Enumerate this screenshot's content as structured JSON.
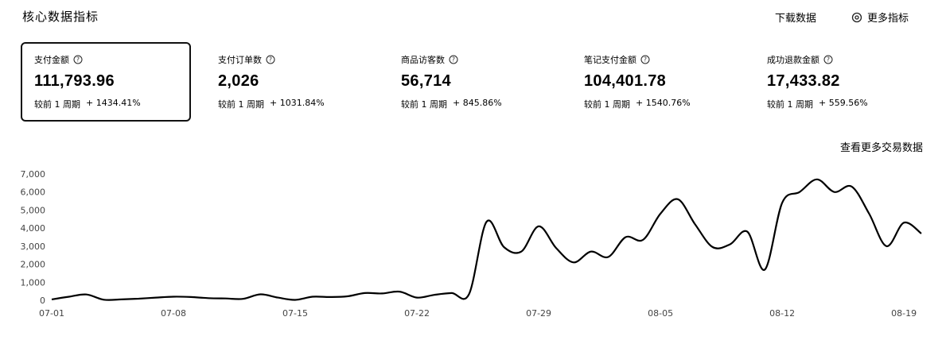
{
  "header": {
    "title": "核心数据指标",
    "download_label": "下载数据",
    "more_metrics_label": "更多指标"
  },
  "metrics": [
    {
      "label": "支付金额",
      "value": "111,793.96",
      "compare_label": "较前 1 周期",
      "change": "+ 1434.41%",
      "selected": true
    },
    {
      "label": "支付订单数",
      "value": "2,026",
      "compare_label": "较前 1 周期",
      "change": "+ 1031.84%",
      "selected": false
    },
    {
      "label": "商品访客数",
      "value": "56,714",
      "compare_label": "较前 1 周期",
      "change": "+ 845.86%",
      "selected": false
    },
    {
      "label": "笔记支付金额",
      "value": "104,401.78",
      "compare_label": "较前 1 周期",
      "change": "+ 1540.76%",
      "selected": false
    },
    {
      "label": "成功退款金额",
      "value": "17,433.82",
      "compare_label": "较前 1 周期",
      "change": "+ 559.56%",
      "selected": false
    }
  ],
  "more_trade_label": "查看更多交易数据",
  "chart_data": {
    "type": "line",
    "x": [
      "07-01",
      "07-02",
      "07-03",
      "07-04",
      "07-05",
      "07-06",
      "07-07",
      "07-08",
      "07-09",
      "07-10",
      "07-11",
      "07-12",
      "07-13",
      "07-14",
      "07-15",
      "07-16",
      "07-17",
      "07-18",
      "07-19",
      "07-20",
      "07-21",
      "07-22",
      "07-23",
      "07-24",
      "07-25",
      "07-26",
      "07-27",
      "07-28",
      "07-29",
      "07-30",
      "07-31",
      "08-01",
      "08-02",
      "08-03",
      "08-04",
      "08-05",
      "08-06",
      "08-07",
      "08-08",
      "08-09",
      "08-10",
      "08-11",
      "08-12",
      "08-13",
      "08-14",
      "08-15",
      "08-16",
      "08-17",
      "08-18",
      "08-19",
      "08-20"
    ],
    "values": [
      50,
      200,
      320,
      30,
      50,
      90,
      150,
      200,
      180,
      120,
      100,
      80,
      330,
      150,
      20,
      200,
      180,
      220,
      400,
      380,
      480,
      150,
      300,
      400,
      350,
      4350,
      2950,
      2700,
      4100,
      2900,
      2100,
      2700,
      2400,
      3500,
      3350,
      4800,
      5600,
      4200,
      2950,
      3100,
      3800,
      1700,
      5400,
      6000,
      6700,
      6000,
      6300,
      4800,
      3000,
      4300,
      3700
    ],
    "xticks": [
      "07-01",
      "07-08",
      "07-15",
      "07-22",
      "07-29",
      "08-05",
      "08-12",
      "08-19"
    ],
    "yticks": [
      "0",
      "1,000",
      "2,000",
      "3,000",
      "4,000",
      "5,000",
      "6,000",
      "7,000"
    ],
    "ylim": [
      0,
      7000
    ],
    "grid": false,
    "line_color": "#000000"
  }
}
